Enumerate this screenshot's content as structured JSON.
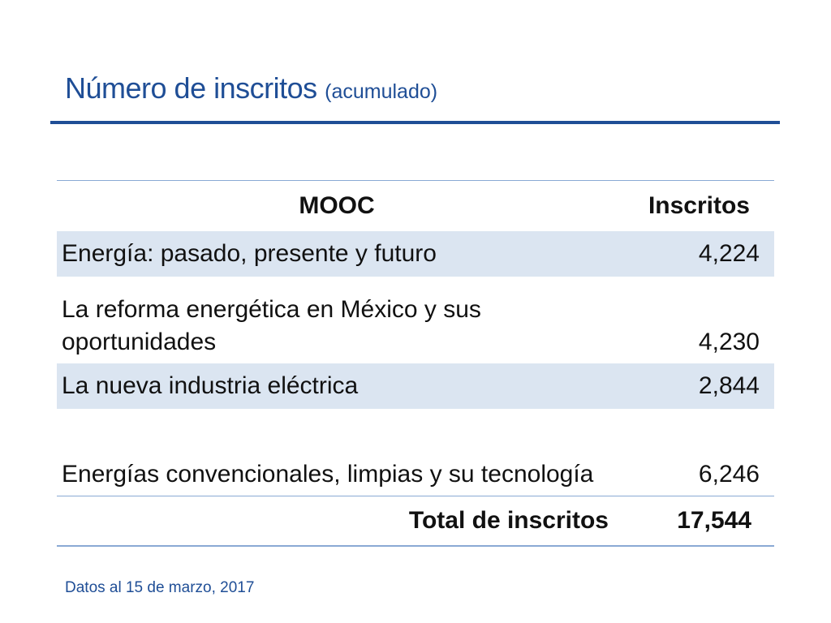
{
  "slide": {
    "title": "Número de inscritos",
    "title_suffix": "(acumulado)",
    "footnote": "Datos al 15 de marzo, 2017"
  },
  "table": {
    "headers": {
      "mooc": "MOOC",
      "inscritos": "Inscritos"
    },
    "rows": [
      {
        "mooc": "Energía: pasado, presente y futuro",
        "inscritos": "4,224"
      },
      {
        "mooc": "La reforma energética en México y sus oportunidades",
        "inscritos": "4,230"
      },
      {
        "mooc": "La nueva industria eléctrica",
        "inscritos": "2,844"
      },
      {
        "mooc": "Energías convencionales, limpias y su tecnología",
        "inscritos": "6,246"
      }
    ],
    "total_label": "Total de inscritos",
    "total_value": "17,544"
  },
  "colors": {
    "title": "#1f4e96",
    "row_shade": "#dbe5f1",
    "border": "#8aa9d4"
  }
}
